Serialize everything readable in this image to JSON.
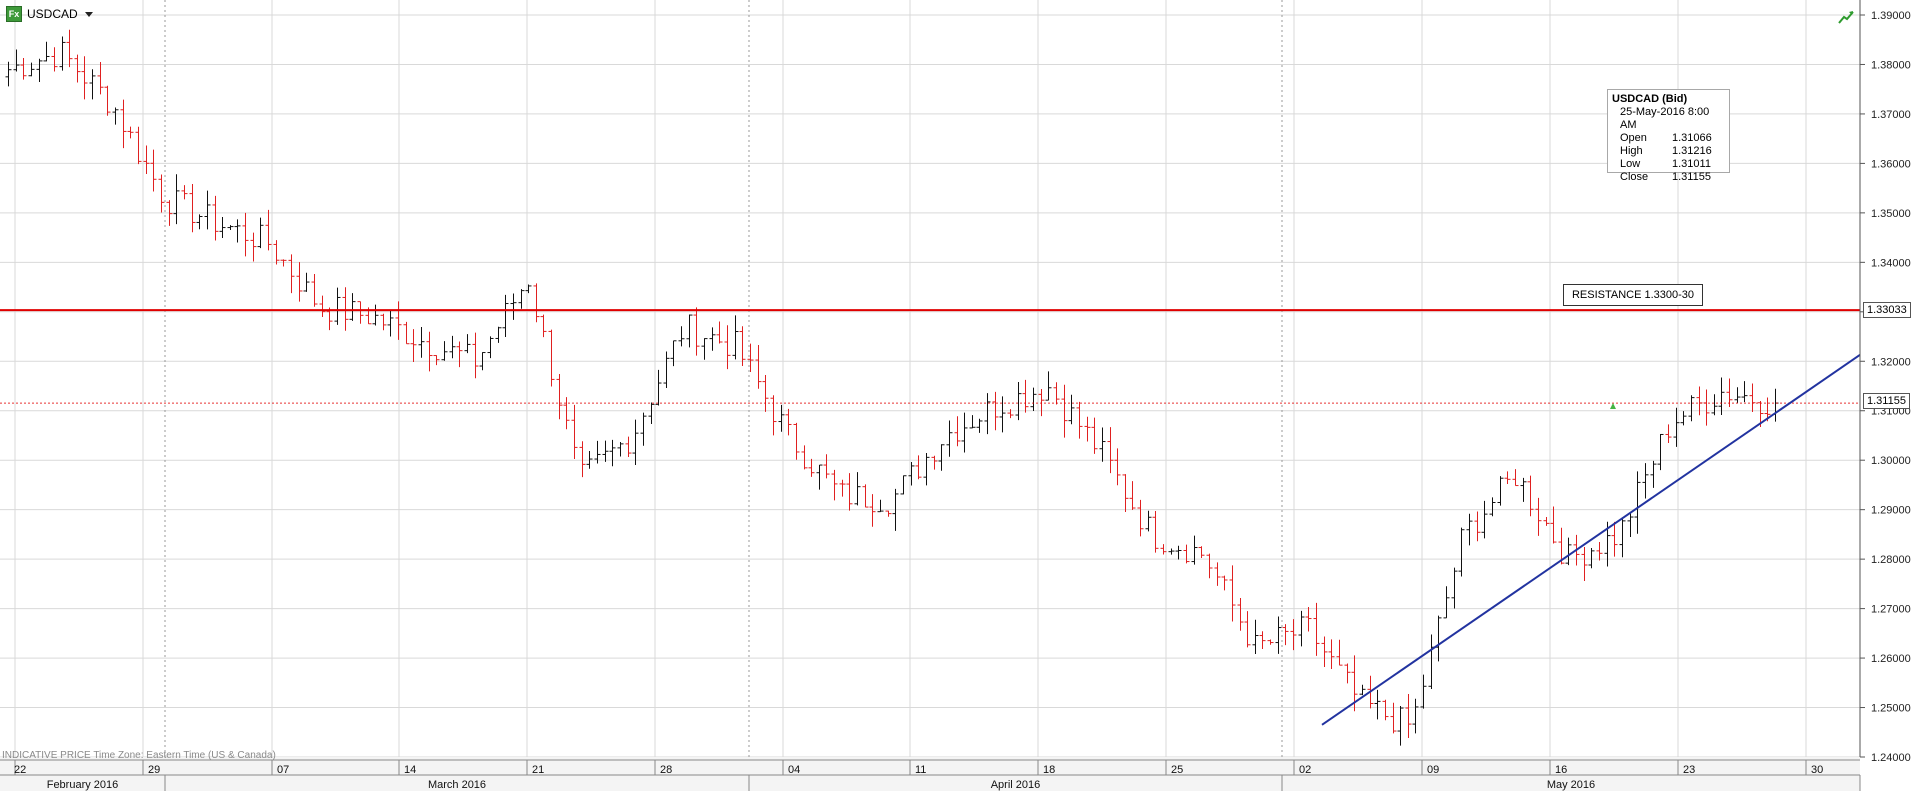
{
  "header": {
    "badge": "Fx",
    "symbol": "USDCAD",
    "dropdown_icon": "chevron-down-icon",
    "trend_icon": "trend-up-icon"
  },
  "info_box": {
    "title": "USDCAD (Bid)",
    "datetime": "25-May-2016 8:00 AM",
    "rows": [
      {
        "label": "Open",
        "value": "1.31066"
      },
      {
        "label": "High",
        "value": "1.31216"
      },
      {
        "label": "Low",
        "value": "1.31011"
      },
      {
        "label": "Close",
        "value": "1.31155"
      }
    ]
  },
  "annotation": {
    "resistance_label": "RESISTANCE 1.3300-30"
  },
  "price_tags": {
    "resistance": "1.33033",
    "last": "1.31155"
  },
  "footer_note": "INDICATIVE PRICE   Time Zone: Eastern Time (US & Canada)",
  "colors": {
    "up": "#111111",
    "down": "#e02020",
    "resistance": "#e00000",
    "trendline": "#2233a0",
    "grid": "#d9d9d9"
  },
  "chart_data": {
    "type": "ohlc",
    "symbol": "USDCAD",
    "y_ticks": [
      "1.24000",
      "1.25000",
      "1.26000",
      "1.27000",
      "1.28000",
      "1.29000",
      "1.30000",
      "1.31000",
      "1.32000",
      "1.33000",
      "1.34000",
      "1.35000",
      "1.36000",
      "1.37000",
      "1.38000",
      "1.39000"
    ],
    "ylim": [
      1.24,
      1.39
    ],
    "x_day_labels": [
      "22",
      "29",
      "07",
      "14",
      "21",
      "28",
      "04",
      "11",
      "18",
      "25",
      "02",
      "09",
      "16",
      "23",
      "30"
    ],
    "x_month_labels": [
      "February 2016",
      "March 2016",
      "April 2016",
      "May 2016"
    ],
    "resistance_level": 1.33033,
    "last_price": 1.31155,
    "trendline": [
      [
        1.2465,
        0.0
      ],
      [
        1.3213,
        1.0
      ]
    ],
    "path": [
      [
        1.3775,
        1.3785,
        1.3755,
        1.379
      ],
      [
        1.372,
        1.3705,
        1.381,
        1.3825
      ],
      [
        1.382,
        1.373,
        1.386,
        1.372
      ],
      [
        1.3755,
        1.354,
        1.355,
        1.353
      ],
      [
        1.3545,
        1.351,
        1.356,
        1.348
      ],
      [
        1.3465,
        1.34,
        1.349,
        1.344
      ],
      [
        1.344,
        1.34,
        1.346,
        1.331
      ],
      [
        1.331,
        1.329,
        1.337,
        1.329
      ],
      [
        1.3435,
        1.338,
        1.332,
        1.324
      ],
      [
        1.323,
        1.325,
        1.33,
        1.32
      ],
      [
        1.321,
        1.324,
        1.338,
        1.337
      ],
      [
        1.3395,
        1.313,
        1.298,
        1.296
      ],
      [
        1.296,
        1.299,
        1.308,
        1.305
      ],
      [
        1.308,
        1.305,
        1.326,
        1.327
      ],
      [
        1.324,
        1.321,
        1.329,
        1.323
      ],
      [
        1.328,
        1.318,
        1.311,
        1.305
      ],
      [
        1.31,
        1.3,
        1.287,
        1.293
      ],
      [
        1.297,
        1.308,
        1.309,
        1.292
      ],
      [
        1.289,
        1.292,
        1.3025,
        1.305
      ],
      [
        1.302,
        1.312,
        1.317,
        1.311
      ],
      [
        1.306,
        1.312,
        1.312,
        1.315
      ],
      [
        1.304,
        1.305,
        1.3,
        1.302
      ],
      [
        1.295,
        1.288,
        1.287,
        1.285
      ],
      [
        1.278,
        1.283,
        1.28,
        1.281
      ],
      [
        1.292,
        1.287,
        1.265,
        1.262
      ],
      [
        1.268,
        1.272,
        1.268,
        1.266
      ],
      [
        1.264,
        1.26,
        1.258,
        1.251
      ],
      [
        1.2545,
        1.255,
        1.252,
        1.246
      ],
      [
        1.257,
        1.271,
        1.286,
        1.285
      ],
      [
        1.288,
        1.292,
        1.296,
        1.297
      ],
      [
        1.295,
        1.289,
        1.285,
        1.28
      ],
      [
        1.288,
        1.293,
        1.289,
        1.285
      ],
      [
        1.292,
        1.299,
        1.305,
        1.308
      ],
      [
        1.31,
        1.314,
        1.311,
        1.314
      ],
      [
        1.317,
        1.313,
        1.309,
        1.31155
      ]
    ],
    "candle_count": 232
  }
}
